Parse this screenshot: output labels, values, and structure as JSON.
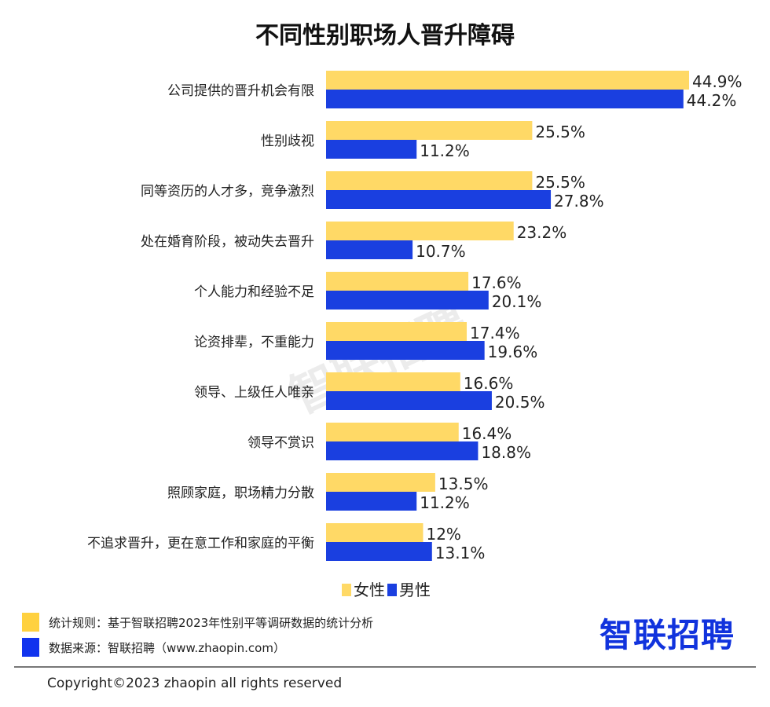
{
  "chart_data": {
    "type": "bar",
    "orientation": "horizontal",
    "title": "不同性别职场人晋升障碍",
    "categories": [
      "公司提供的晋升机会有限",
      "性别歧视",
      "同等资历的人才多，竞争激烈",
      "处在婚育阶段，被动失去晋升",
      "个人能力和经验不足",
      "论资排辈，不重能力",
      "领导、上级任人唯亲",
      "领导不赏识",
      "照顾家庭，职场精力分散",
      "不追求晋升，更在意工作和家庭的平衡"
    ],
    "series": [
      {
        "name": "女性",
        "color": "#FFD966",
        "values": [
          44.9,
          25.5,
          25.5,
          23.2,
          17.6,
          17.4,
          16.6,
          16.4,
          13.5,
          12
        ],
        "labels": [
          "44.9%",
          "25.5%",
          "25.5%",
          "23.2%",
          "17.6%",
          "17.4%",
          "16.6%",
          "16.4%",
          "13.5%",
          "12%"
        ]
      },
      {
        "name": "男性",
        "color": "#1A3FE0",
        "values": [
          44.2,
          11.2,
          27.8,
          10.7,
          20.1,
          19.6,
          20.5,
          18.8,
          11.2,
          13.1
        ],
        "labels": [
          "44.2%",
          "11.2%",
          "27.8%",
          "10.7%",
          "20.1%",
          "19.6%",
          "20.5%",
          "18.8%",
          "11.2%",
          "13.1%"
        ]
      }
    ],
    "legend": "bottom-center",
    "grid": false,
    "xlim": [
      0,
      50
    ]
  },
  "notes": {
    "rule": "统计规则：基于智联招聘2023年性别平等调研数据的统计分析",
    "source": "数据来源：智联招聘（www.zhaopin.com）"
  },
  "logo": "智联招聘",
  "watermark": "智联招聘",
  "copyright": "Copyright©2023 zhaopin all rights reserved"
}
